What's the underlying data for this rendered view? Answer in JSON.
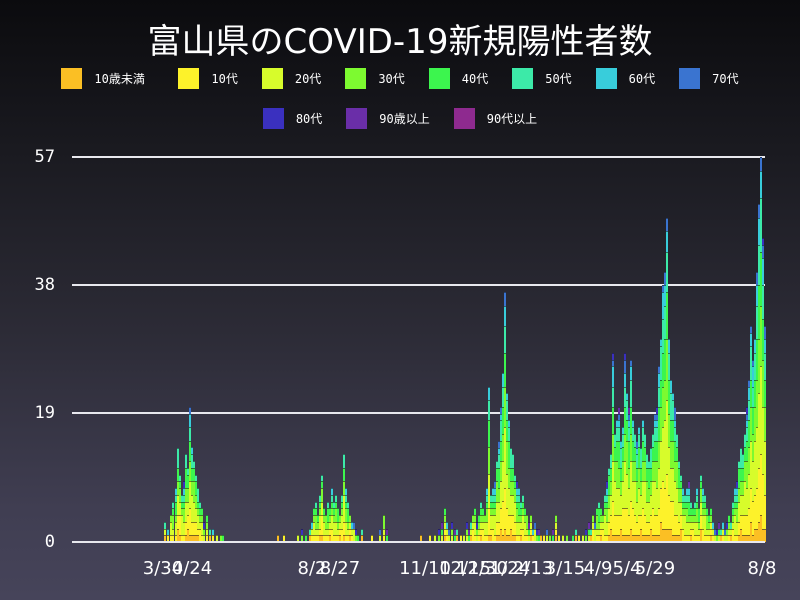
{
  "title": "富山県のCOVID-19新規陽性者数",
  "legend": [
    {
      "label": "10歳未満",
      "color": "#fbbf24"
    },
    {
      "label": "10代",
      "color": "#fdf22a"
    },
    {
      "label": "20代",
      "color": "#d7fc2b"
    },
    {
      "label": "30代",
      "color": "#7dfa30"
    },
    {
      "label": "40代",
      "color": "#3cf54e"
    },
    {
      "label": "50代",
      "color": "#3ceaa8"
    },
    {
      "label": "60代",
      "color": "#38cddb"
    },
    {
      "label": "70代",
      "color": "#3a74d0"
    },
    {
      "label": "80代",
      "color": "#3a30bf"
    },
    {
      "label": "90歳以上",
      "color": "#6a2ea8"
    },
    {
      "label": "90代以上",
      "color": "#8e2a8f"
    }
  ],
  "y_axis": {
    "ticks": [
      "0",
      "19",
      "38",
      "57"
    ],
    "max": 57
  },
  "x_axis": {
    "ticks": [
      {
        "label": "3/30",
        "x": 163
      },
      {
        "label": "4/24",
        "x": 192
      },
      {
        "label": "8/2",
        "x": 312
      },
      {
        "label": "8/27",
        "x": 340
      },
      {
        "label": "11/10",
        "x": 425
      },
      {
        "label": "12/15",
        "x": 465
      },
      {
        "label": "12/30",
        "x": 482
      },
      {
        "label": "1/24",
        "x": 510
      },
      {
        "label": "2/13",
        "x": 533
      },
      {
        "label": "3/15",
        "x": 565
      },
      {
        "label": "4/9",
        "x": 598
      },
      {
        "label": "5/4",
        "x": 627
      },
      {
        "label": "5/29",
        "x": 655
      },
      {
        "label": "8/8",
        "x": 762
      }
    ]
  },
  "chart_data": {
    "type": "bar",
    "stacked": true,
    "title": "富山県のCOVID-19新規陽性者数",
    "xlabel": "",
    "ylabel": "",
    "ylim": [
      0,
      57
    ],
    "yticks": [
      0,
      19,
      38,
      57
    ],
    "xtick_labels": [
      "3/30",
      "4/24",
      "8/2",
      "8/27",
      "11/10",
      "12/15",
      "12/30",
      "1/24",
      "2/13",
      "3/15",
      "4/9",
      "5/4",
      "5/29",
      "8/8"
    ],
    "series_names": [
      "10歳未満",
      "10代",
      "20代",
      "30代",
      "40代",
      "50代",
      "60代",
      "70代",
      "80代",
      "90歳以上",
      "90代以上"
    ],
    "legend_position": "top",
    "grid": true,
    "daily_totals_approx": [
      {
        "x": 164,
        "v": 3
      },
      {
        "x": 167,
        "v": 2
      },
      {
        "x": 170,
        "v": 4
      },
      {
        "x": 172,
        "v": 6
      },
      {
        "x": 175,
        "v": 8
      },
      {
        "x": 177,
        "v": 14
      },
      {
        "x": 179,
        "v": 10
      },
      {
        "x": 181,
        "v": 7
      },
      {
        "x": 183,
        "v": 9
      },
      {
        "x": 185,
        "v": 13
      },
      {
        "x": 187,
        "v": 11
      },
      {
        "x": 189,
        "v": 20
      },
      {
        "x": 191,
        "v": 14
      },
      {
        "x": 193,
        "v": 12
      },
      {
        "x": 195,
        "v": 10
      },
      {
        "x": 197,
        "v": 8
      },
      {
        "x": 199,
        "v": 6
      },
      {
        "x": 201,
        "v": 5
      },
      {
        "x": 203,
        "v": 3
      },
      {
        "x": 206,
        "v": 4
      },
      {
        "x": 209,
        "v": 2
      },
      {
        "x": 212,
        "v": 2
      },
      {
        "x": 216,
        "v": 1
      },
      {
        "x": 220,
        "v": 1
      },
      {
        "x": 222,
        "v": 1
      },
      {
        "x": 277,
        "v": 1
      },
      {
        "x": 283,
        "v": 1
      },
      {
        "x": 297,
        "v": 1
      },
      {
        "x": 301,
        "v": 2
      },
      {
        "x": 305,
        "v": 1
      },
      {
        "x": 309,
        "v": 2
      },
      {
        "x": 311,
        "v": 3
      },
      {
        "x": 313,
        "v": 5
      },
      {
        "x": 315,
        "v": 6
      },
      {
        "x": 317,
        "v": 4
      },
      {
        "x": 319,
        "v": 7
      },
      {
        "x": 321,
        "v": 10
      },
      {
        "x": 323,
        "v": 5
      },
      {
        "x": 325,
        "v": 4
      },
      {
        "x": 327,
        "v": 6
      },
      {
        "x": 329,
        "v": 5
      },
      {
        "x": 331,
        "v": 8
      },
      {
        "x": 333,
        "v": 6
      },
      {
        "x": 335,
        "v": 7
      },
      {
        "x": 337,
        "v": 5
      },
      {
        "x": 339,
        "v": 4
      },
      {
        "x": 341,
        "v": 7
      },
      {
        "x": 343,
        "v": 13
      },
      {
        "x": 345,
        "v": 8
      },
      {
        "x": 347,
        "v": 6
      },
      {
        "x": 349,
        "v": 4
      },
      {
        "x": 351,
        "v": 3
      },
      {
        "x": 353,
        "v": 3
      },
      {
        "x": 355,
        "v": 2
      },
      {
        "x": 357,
        "v": 1
      },
      {
        "x": 361,
        "v": 2
      },
      {
        "x": 371,
        "v": 1
      },
      {
        "x": 379,
        "v": 2
      },
      {
        "x": 383,
        "v": 4
      },
      {
        "x": 386,
        "v": 2
      },
      {
        "x": 420,
        "v": 1
      },
      {
        "x": 429,
        "v": 1
      },
      {
        "x": 434,
        "v": 1
      },
      {
        "x": 438,
        "v": 2
      },
      {
        "x": 441,
        "v": 3
      },
      {
        "x": 444,
        "v": 5
      },
      {
        "x": 446,
        "v": 3
      },
      {
        "x": 448,
        "v": 2
      },
      {
        "x": 451,
        "v": 3
      },
      {
        "x": 454,
        "v": 2
      },
      {
        "x": 456,
        "v": 2
      },
      {
        "x": 460,
        "v": 1
      },
      {
        "x": 463,
        "v": 1
      },
      {
        "x": 466,
        "v": 3
      },
      {
        "x": 468,
        "v": 2
      },
      {
        "x": 470,
        "v": 3
      },
      {
        "x": 472,
        "v": 4
      },
      {
        "x": 474,
        "v": 5
      },
      {
        "x": 476,
        "v": 3
      },
      {
        "x": 478,
        "v": 4
      },
      {
        "x": 480,
        "v": 6
      },
      {
        "x": 482,
        "v": 5
      },
      {
        "x": 484,
        "v": 4
      },
      {
        "x": 486,
        "v": 8
      },
      {
        "x": 488,
        "v": 23
      },
      {
        "x": 490,
        "v": 7
      },
      {
        "x": 492,
        "v": 8
      },
      {
        "x": 494,
        "v": 9
      },
      {
        "x": 496,
        "v": 12
      },
      {
        "x": 498,
        "v": 15
      },
      {
        "x": 500,
        "v": 20
      },
      {
        "x": 502,
        "v": 25
      },
      {
        "x": 504,
        "v": 37
      },
      {
        "x": 506,
        "v": 22
      },
      {
        "x": 508,
        "v": 18
      },
      {
        "x": 510,
        "v": 14
      },
      {
        "x": 512,
        "v": 13
      },
      {
        "x": 514,
        "v": 10
      },
      {
        "x": 516,
        "v": 9
      },
      {
        "x": 518,
        "v": 8
      },
      {
        "x": 520,
        "v": 6
      },
      {
        "x": 522,
        "v": 7
      },
      {
        "x": 524,
        "v": 5
      },
      {
        "x": 526,
        "v": 4
      },
      {
        "x": 528,
        "v": 3
      },
      {
        "x": 530,
        "v": 4
      },
      {
        "x": 532,
        "v": 2
      },
      {
        "x": 534,
        "v": 3
      },
      {
        "x": 536,
        "v": 2
      },
      {
        "x": 538,
        "v": 2
      },
      {
        "x": 540,
        "v": 1
      },
      {
        "x": 543,
        "v": 1
      },
      {
        "x": 546,
        "v": 2
      },
      {
        "x": 549,
        "v": 1
      },
      {
        "x": 552,
        "v": 2
      },
      {
        "x": 555,
        "v": 4
      },
      {
        "x": 558,
        "v": 1
      },
      {
        "x": 562,
        "v": 1
      },
      {
        "x": 566,
        "v": 1
      },
      {
        "x": 572,
        "v": 1
      },
      {
        "x": 575,
        "v": 2
      },
      {
        "x": 578,
        "v": 1
      },
      {
        "x": 582,
        "v": 1
      },
      {
        "x": 585,
        "v": 2
      },
      {
        "x": 588,
        "v": 3
      },
      {
        "x": 590,
        "v": 2
      },
      {
        "x": 592,
        "v": 4
      },
      {
        "x": 594,
        "v": 3
      },
      {
        "x": 596,
        "v": 5
      },
      {
        "x": 598,
        "v": 6
      },
      {
        "x": 600,
        "v": 5
      },
      {
        "x": 602,
        "v": 4
      },
      {
        "x": 604,
        "v": 7
      },
      {
        "x": 606,
        "v": 9
      },
      {
        "x": 608,
        "v": 11
      },
      {
        "x": 610,
        "v": 13
      },
      {
        "x": 612,
        "v": 28
      },
      {
        "x": 614,
        "v": 16
      },
      {
        "x": 616,
        "v": 18
      },
      {
        "x": 618,
        "v": 20
      },
      {
        "x": 620,
        "v": 15
      },
      {
        "x": 622,
        "v": 17
      },
      {
        "x": 624,
        "v": 28
      },
      {
        "x": 626,
        "v": 22
      },
      {
        "x": 628,
        "v": 20
      },
      {
        "x": 630,
        "v": 27
      },
      {
        "x": 632,
        "v": 18
      },
      {
        "x": 634,
        "v": 16
      },
      {
        "x": 636,
        "v": 15
      },
      {
        "x": 638,
        "v": 17
      },
      {
        "x": 640,
        "v": 14
      },
      {
        "x": 642,
        "v": 18
      },
      {
        "x": 644,
        "v": 16
      },
      {
        "x": 646,
        "v": 13
      },
      {
        "x": 648,
        "v": 12
      },
      {
        "x": 650,
        "v": 14
      },
      {
        "x": 652,
        "v": 16
      },
      {
        "x": 654,
        "v": 19
      },
      {
        "x": 656,
        "v": 20
      },
      {
        "x": 658,
        "v": 26
      },
      {
        "x": 660,
        "v": 30
      },
      {
        "x": 662,
        "v": 38
      },
      {
        "x": 664,
        "v": 40
      },
      {
        "x": 666,
        "v": 48
      },
      {
        "x": 668,
        "v": 30
      },
      {
        "x": 670,
        "v": 24
      },
      {
        "x": 672,
        "v": 22
      },
      {
        "x": 674,
        "v": 20
      },
      {
        "x": 676,
        "v": 16
      },
      {
        "x": 678,
        "v": 12
      },
      {
        "x": 680,
        "v": 10
      },
      {
        "x": 682,
        "v": 8
      },
      {
        "x": 684,
        "v": 7
      },
      {
        "x": 686,
        "v": 8
      },
      {
        "x": 688,
        "v": 9
      },
      {
        "x": 690,
        "v": 6
      },
      {
        "x": 692,
        "v": 5
      },
      {
        "x": 694,
        "v": 6
      },
      {
        "x": 696,
        "v": 8
      },
      {
        "x": 698,
        "v": 5
      },
      {
        "x": 700,
        "v": 10
      },
      {
        "x": 702,
        "v": 8
      },
      {
        "x": 704,
        "v": 7
      },
      {
        "x": 706,
        "v": 5
      },
      {
        "x": 708,
        "v": 4
      },
      {
        "x": 710,
        "v": 5
      },
      {
        "x": 712,
        "v": 3
      },
      {
        "x": 714,
        "v": 2
      },
      {
        "x": 716,
        "v": 2
      },
      {
        "x": 718,
        "v": 3
      },
      {
        "x": 720,
        "v": 2
      },
      {
        "x": 722,
        "v": 3
      },
      {
        "x": 724,
        "v": 2
      },
      {
        "x": 726,
        "v": 3
      },
      {
        "x": 728,
        "v": 4
      },
      {
        "x": 730,
        "v": 3
      },
      {
        "x": 732,
        "v": 6
      },
      {
        "x": 734,
        "v": 8
      },
      {
        "x": 736,
        "v": 9
      },
      {
        "x": 738,
        "v": 12
      },
      {
        "x": 740,
        "v": 14
      },
      {
        "x": 742,
        "v": 13
      },
      {
        "x": 744,
        "v": 16
      },
      {
        "x": 746,
        "v": 20
      },
      {
        "x": 748,
        "v": 24
      },
      {
        "x": 750,
        "v": 32
      },
      {
        "x": 752,
        "v": 27
      },
      {
        "x": 754,
        "v": 30
      },
      {
        "x": 756,
        "v": 40
      },
      {
        "x": 758,
        "v": 50
      },
      {
        "x": 760,
        "v": 57
      },
      {
        "x": 762,
        "v": 45
      },
      {
        "x": 764,
        "v": 32
      }
    ]
  }
}
